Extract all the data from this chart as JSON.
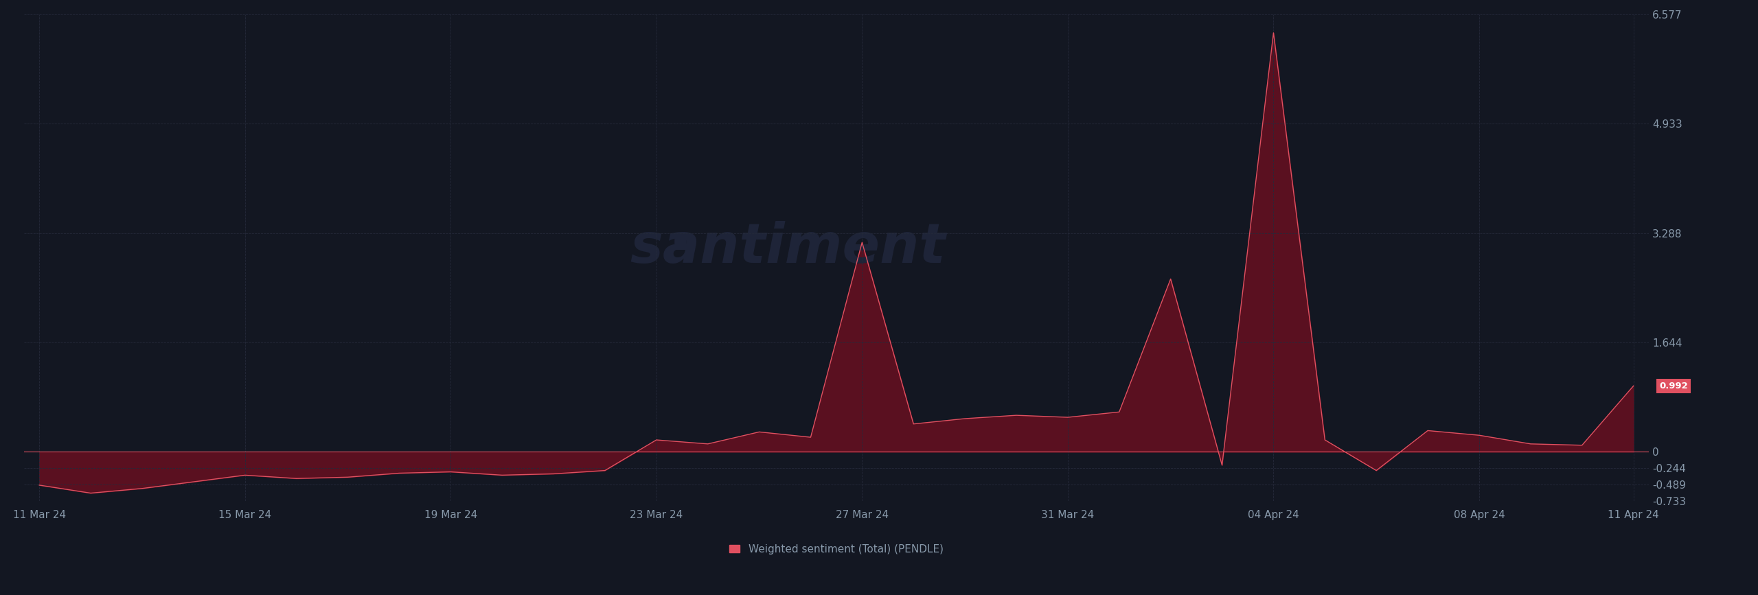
{
  "background_color": "#131722",
  "plot_bg_color": "#131722",
  "line_color": "#e05060",
  "fill_color": "#5a1020",
  "zero_line_color": "#e05060",
  "grid_color": "#252a3a",
  "text_color": "#8899aa",
  "watermark": "santiment",
  "legend_label": "Weighted sentiment (Total) (PENDLE)",
  "last_value": 0.992,
  "last_value_bg": "#e05060",
  "yticks": [
    6.577,
    4.933,
    3.288,
    1.644,
    0,
    -0.244,
    -0.489,
    -0.733
  ],
  "xtick_labels": [
    "11 Mar 24",
    "15 Mar 24",
    "19 Mar 24",
    "23 Mar 24",
    "27 Mar 24",
    "31 Mar 24",
    "04 Apr 24",
    "08 Apr 24",
    "11 Apr 24"
  ],
  "xtick_positions": [
    0,
    4,
    8,
    12,
    16,
    20,
    24,
    28,
    31
  ],
  "ymin": -0.733,
  "ymax": 6.577,
  "values": [
    -0.5,
    -0.62,
    -0.55,
    -0.45,
    -0.35,
    -0.4,
    -0.38,
    -0.32,
    -0.3,
    -0.35,
    -0.33,
    -0.28,
    0.18,
    0.12,
    0.3,
    0.22,
    3.15,
    0.42,
    0.5,
    0.55,
    0.52,
    0.6,
    2.6,
    -0.2,
    6.3,
    0.18,
    -0.28,
    0.32,
    0.25,
    0.12,
    0.1,
    0.992
  ]
}
